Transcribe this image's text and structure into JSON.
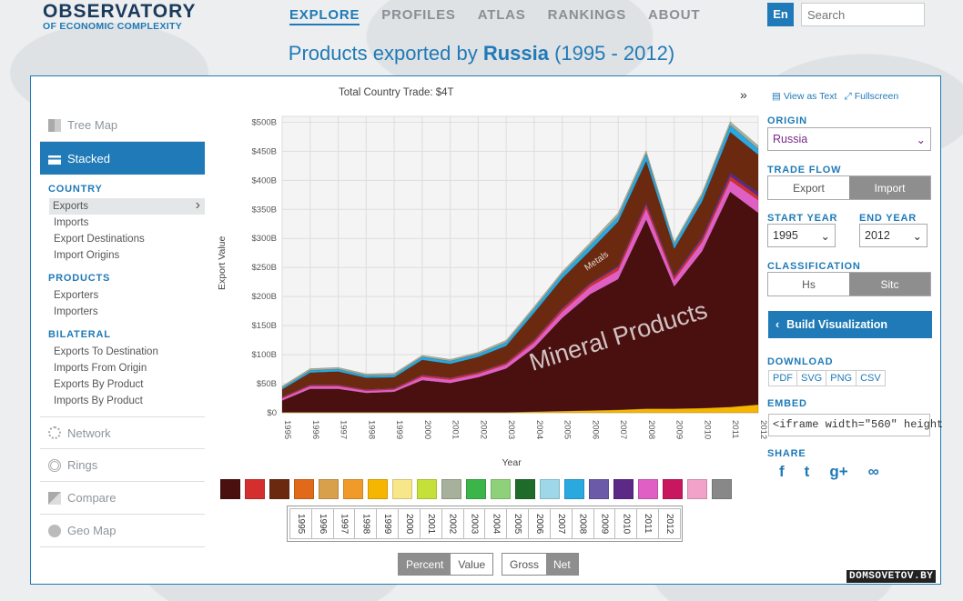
{
  "header": {
    "logo_line1": "OBSERVATORY",
    "logo_line2": "OF ECONOMIC COMPLEXITY",
    "nav": [
      "EXPLORE",
      "PROFILES",
      "ATLAS",
      "RANKINGS",
      "ABOUT"
    ],
    "lang": "En",
    "search_placeholder": "Search"
  },
  "title": {
    "prefix": "Products exported by",
    "country": "Russia",
    "range": "(1995 - 2012)"
  },
  "left_menu": {
    "vis": [
      "Tree Map",
      "Stacked",
      "Network",
      "Rings",
      "Compare",
      "Geo Map"
    ],
    "country_title": "COUNTRY",
    "country_items": [
      "Exports",
      "Imports",
      "Export Destinations",
      "Import Origins"
    ],
    "products_title": "PRODUCTS",
    "products_items": [
      "Exporters",
      "Importers"
    ],
    "bilateral_title": "BILATERAL",
    "bilateral_items": [
      "Exports To Destination",
      "Imports From Origin",
      "Exports By Product",
      "Imports By Product"
    ]
  },
  "chart_header": {
    "total": "Total Country Trade: $4T",
    "collapse": "»"
  },
  "view_links": [
    "View as Text",
    "Fullscreen"
  ],
  "controls": {
    "origin_label": "ORIGIN",
    "origin_value": "Russia",
    "trade_flow_label": "TRADE FLOW",
    "trade_flow": [
      "Export",
      "Import"
    ],
    "start_label": "START YEAR",
    "start_value": "1995",
    "end_label": "END YEAR",
    "end_value": "2012",
    "class_label": "CLASSIFICATION",
    "classification": [
      "Hs",
      "Sitc"
    ],
    "build": "Build Visualization",
    "download_label": "DOWNLOAD",
    "download": [
      "PDF",
      "SVG",
      "PNG",
      "CSV"
    ],
    "embed_label": "EMBED",
    "embed_value": "<iframe width=\"560\" height",
    "share_label": "SHARE",
    "share": [
      "f",
      "t",
      "g+",
      "∞"
    ]
  },
  "bottom": {
    "years": [
      "1995",
      "1996",
      "1997",
      "1998",
      "1999",
      "2000",
      "2001",
      "2002",
      "2003",
      "2004",
      "2005",
      "2006",
      "2007",
      "2008",
      "2009",
      "2010",
      "2011",
      "2012"
    ],
    "mode": [
      "Percent",
      "Value"
    ],
    "flow": [
      "Gross",
      "Net"
    ]
  },
  "category_colors": [
    "#4a0f0f",
    "#d42e2e",
    "#6b2a10",
    "#e06a1a",
    "#d8a04a",
    "#f09a2a",
    "#f6b500",
    "#f8e68a",
    "#c6e03a",
    "#a7b09a",
    "#3bb44a",
    "#8fd07a",
    "#1f6b2a",
    "#9dd7e8",
    "#2aa8e0",
    "#6b5aa8",
    "#5c2a86",
    "#e05fc4",
    "#c8175e",
    "#f2a2c8",
    "#888888"
  ],
  "watermark": "DOMSOVETOV.BY",
  "chart_data": {
    "type": "area",
    "stacked": true,
    "xlabel": "Year",
    "ylabel": "Export Value",
    "x": [
      1995,
      1996,
      1997,
      1998,
      1999,
      2000,
      2001,
      2002,
      2003,
      2004,
      2005,
      2006,
      2007,
      2008,
      2009,
      2010,
      2011,
      2012
    ],
    "yticks": [
      "$0",
      "$50B",
      "$100B",
      "$150B",
      "$200B",
      "$250B",
      "$300B",
      "$350B",
      "$400B",
      "$450B",
      "$500B"
    ],
    "ylim": [
      0,
      510
    ],
    "series": [
      {
        "name": "",
        "color": "#f6b500",
        "values": [
          1,
          1,
          1,
          1,
          1,
          1,
          1,
          1,
          1,
          2,
          3,
          4,
          5,
          7,
          7,
          8,
          10,
          14
        ]
      },
      {
        "name": "Mineral Products",
        "color": "#4a0f0f",
        "values": [
          20,
          40,
          40,
          33,
          35,
          55,
          50,
          60,
          75,
          110,
          160,
          200,
          225,
          325,
          210,
          270,
          370,
          330
        ]
      },
      {
        "name": "",
        "color": "#e05fc4",
        "values": [
          4,
          5,
          5,
          4,
          4,
          6,
          6,
          6,
          7,
          9,
          11,
          13,
          15,
          20,
          12,
          16,
          20,
          22
        ]
      },
      {
        "name": "",
        "color": "#d42e2e",
        "values": [
          2,
          2,
          2,
          2,
          2,
          3,
          3,
          3,
          3,
          4,
          5,
          5,
          6,
          7,
          5,
          6,
          7,
          7
        ]
      },
      {
        "name": "",
        "color": "#5c2a86",
        "values": [
          1,
          1,
          1,
          1,
          1,
          1,
          1,
          1,
          1,
          2,
          2,
          2,
          3,
          4,
          3,
          4,
          6,
          6
        ]
      },
      {
        "name": "Metals",
        "color": "#6b2a10",
        "values": [
          12,
          20,
          22,
          19,
          18,
          25,
          23,
          25,
          28,
          45,
          50,
          55,
          75,
          70,
          45,
          60,
          70,
          65
        ]
      },
      {
        "name": "",
        "color": "#2aa8e0",
        "values": [
          3,
          4,
          4,
          4,
          4,
          5,
          5,
          5,
          6,
          7,
          8,
          9,
          9,
          12,
          8,
          10,
          12,
          10
        ]
      },
      {
        "name": "",
        "color": "#a7b09a",
        "values": [
          3,
          3,
          3,
          3,
          3,
          3,
          3,
          3,
          4,
          4,
          4,
          5,
          6,
          6,
          4,
          5,
          6,
          6
        ]
      }
    ],
    "labels": [
      "Mineral Products",
      "Metals"
    ]
  }
}
